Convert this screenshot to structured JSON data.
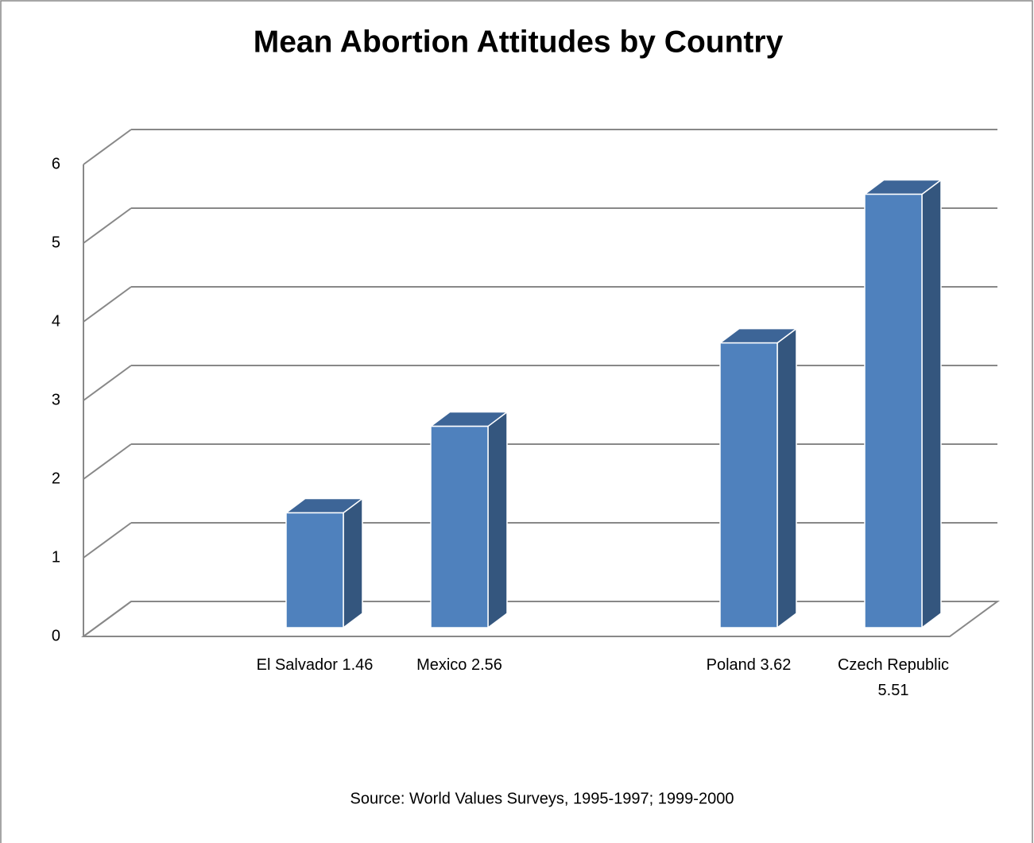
{
  "chart_data": {
    "type": "bar3d",
    "title": "Mean Abortion Attitudes by Country",
    "categories": [
      "El Salvador 1.46",
      "Mexico 2.56",
      null,
      "Poland 3.62",
      "Czech Republic 5.51"
    ],
    "values": [
      1.46,
      2.56,
      null,
      3.62,
      5.51
    ],
    "color": "#4f81bd",
    "ylim": [
      0,
      6
    ],
    "yticks": [
      0,
      1,
      2,
      3,
      4,
      5,
      6
    ],
    "grid": true,
    "source": "Source:  World Values Surveys, 1995-1997; 1999-2000"
  }
}
